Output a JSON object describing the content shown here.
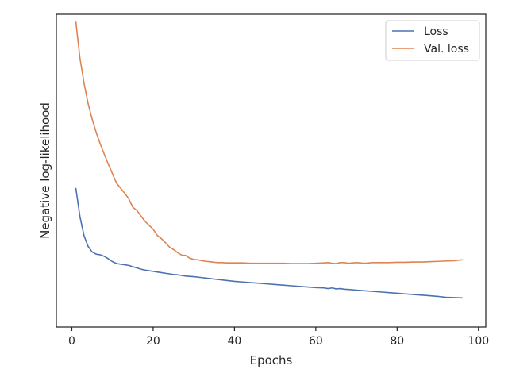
{
  "chart_data": {
    "type": "line",
    "xlabel": "Epochs",
    "ylabel": "Negative log-likelihood",
    "xlim": [
      -3.8,
      101.8
    ],
    "ylim": [
      0,
      1
    ],
    "xticks": [
      0,
      20,
      40,
      60,
      80,
      100
    ],
    "yticks_shown": false,
    "grid": false,
    "legend_position": "top-right",
    "series": [
      {
        "name": "Loss",
        "color": "#4c72b0",
        "x": [
          1,
          2,
          3,
          4,
          5,
          6,
          7,
          8,
          9,
          10,
          11,
          12,
          13,
          14,
          15,
          16,
          17,
          18,
          19,
          20,
          21,
          22,
          23,
          24,
          25,
          26,
          27,
          28,
          29,
          30,
          32,
          34,
          36,
          38,
          40,
          42,
          44,
          46,
          48,
          50,
          52,
          54,
          56,
          58,
          60,
          62,
          63,
          64,
          65,
          66,
          67,
          68,
          70,
          72,
          74,
          76,
          78,
          80,
          82,
          84,
          86,
          88,
          90,
          92,
          94,
          96
        ],
        "y": [
          0.443,
          0.353,
          0.292,
          0.258,
          0.24,
          0.233,
          0.231,
          0.226,
          0.218,
          0.209,
          0.203,
          0.201,
          0.199,
          0.197,
          0.193,
          0.189,
          0.185,
          0.182,
          0.18,
          0.178,
          0.176,
          0.174,
          0.172,
          0.17,
          0.168,
          0.167,
          0.165,
          0.163,
          0.162,
          0.161,
          0.158,
          0.155,
          0.152,
          0.149,
          0.146,
          0.144,
          0.142,
          0.14,
          0.138,
          0.136,
          0.134,
          0.132,
          0.13,
          0.128,
          0.126,
          0.125,
          0.123,
          0.125,
          0.122,
          0.123,
          0.121,
          0.12,
          0.118,
          0.116,
          0.114,
          0.112,
          0.11,
          0.108,
          0.106,
          0.104,
          0.102,
          0.1,
          0.098,
          0.095,
          0.094,
          0.093
        ]
      },
      {
        "name": "Val. loss",
        "color": "#dd8452",
        "x": [
          1,
          2,
          3,
          4,
          5,
          6,
          7,
          8,
          9,
          10,
          11,
          12,
          13,
          14,
          15,
          16,
          17,
          18,
          19,
          20,
          21,
          22,
          23,
          24,
          25,
          26,
          27,
          28,
          29,
          30,
          31,
          32,
          33,
          34,
          35,
          36,
          37,
          38,
          39,
          40,
          42,
          44,
          46,
          48,
          50,
          52,
          54,
          56,
          58,
          60,
          62,
          63,
          64,
          65,
          66,
          67,
          68,
          70,
          72,
          74,
          76,
          78,
          80,
          82,
          84,
          86,
          88,
          90,
          92,
          94,
          96
        ],
        "y": [
          0.975,
          0.86,
          0.78,
          0.715,
          0.665,
          0.622,
          0.585,
          0.552,
          0.52,
          0.49,
          0.46,
          0.444,
          0.428,
          0.41,
          0.383,
          0.373,
          0.355,
          0.338,
          0.325,
          0.313,
          0.293,
          0.283,
          0.27,
          0.256,
          0.248,
          0.238,
          0.23,
          0.229,
          0.22,
          0.216,
          0.215,
          0.212,
          0.21,
          0.209,
          0.207,
          0.206,
          0.206,
          0.205,
          0.205,
          0.205,
          0.205,
          0.204,
          0.204,
          0.204,
          0.204,
          0.204,
          0.203,
          0.203,
          0.203,
          0.204,
          0.205,
          0.206,
          0.204,
          0.203,
          0.206,
          0.206,
          0.204,
          0.206,
          0.204,
          0.206,
          0.206,
          0.206,
          0.207,
          0.207,
          0.208,
          0.208,
          0.209,
          0.21,
          0.211,
          0.212,
          0.215
        ]
      }
    ]
  }
}
